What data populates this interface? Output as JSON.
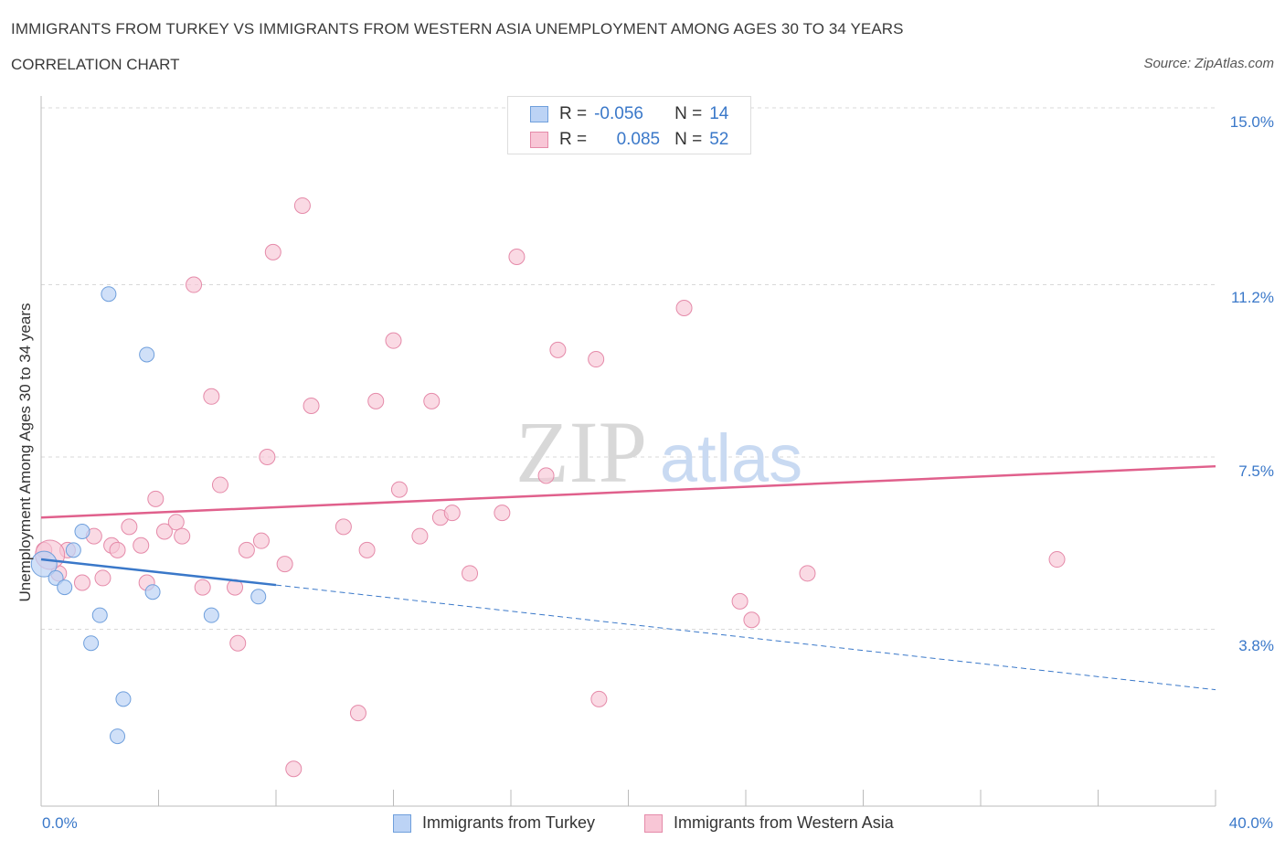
{
  "header": {
    "title": "IMMIGRANTS FROM TURKEY VS IMMIGRANTS FROM WESTERN ASIA UNEMPLOYMENT AMONG AGES 30 TO 34 YEARS",
    "subtitle": "CORRELATION CHART",
    "source": "Source: ZipAtlas.com"
  },
  "watermark": {
    "zip": "ZIP",
    "atlas": "atlas"
  },
  "stats": {
    "turkey": {
      "r_label": "R =",
      "r_value": "-0.056",
      "n_label": "N =",
      "n_value": "14"
    },
    "western_asia": {
      "r_label": "R =",
      "r_value": "0.085",
      "n_label": "N =",
      "n_value": "52"
    }
  },
  "colors": {
    "turkey_fill": "#bcd3f5",
    "turkey_stroke": "#6f9fdc",
    "turkey_line": "#3a78c9",
    "western_fill": "#f8c6d6",
    "western_stroke": "#e58aa9",
    "western_line": "#e0608c",
    "grid": "#d9d9d9",
    "axis_text": "#3a78c9"
  },
  "chart_data": {
    "type": "scatter",
    "title": "IMMIGRANTS FROM TURKEY VS IMMIGRANTS FROM WESTERN ASIA UNEMPLOYMENT AMONG AGES 30 TO 34 YEARS",
    "xlabel": "",
    "ylabel": "Unemployment Among Ages 30 to 34 years",
    "xlim": [
      0,
      40
    ],
    "ylim": [
      0,
      15
    ],
    "x_tick_labels": [
      "0.0%",
      "40.0%"
    ],
    "y_ticks": [
      3.8,
      7.5,
      11.2,
      15.0
    ],
    "y_tick_labels": [
      "3.8%",
      "7.5%",
      "11.2%",
      "15.0%"
    ],
    "legend": [
      "Immigrants from Turkey",
      "Immigrants from Western Asia"
    ],
    "series": [
      {
        "name": "Immigrants from Turkey",
        "points": [
          {
            "x": 0.1,
            "y": 5.2
          },
          {
            "x": 0.5,
            "y": 4.9
          },
          {
            "x": 0.8,
            "y": 4.7
          },
          {
            "x": 1.1,
            "y": 5.5
          },
          {
            "x": 1.4,
            "y": 5.9
          },
          {
            "x": 1.7,
            "y": 3.5
          },
          {
            "x": 2.0,
            "y": 4.1
          },
          {
            "x": 2.3,
            "y": 11.0
          },
          {
            "x": 2.8,
            "y": 2.3
          },
          {
            "x": 2.6,
            "y": 1.5
          },
          {
            "x": 3.6,
            "y": 9.7
          },
          {
            "x": 3.8,
            "y": 4.6
          },
          {
            "x": 5.8,
            "y": 4.1
          },
          {
            "x": 7.4,
            "y": 4.5
          }
        ],
        "trend": {
          "x0": 0,
          "y0": 5.3,
          "x1": 8.0,
          "y1": 4.75,
          "dash_x1": 40.0,
          "dash_y1": 2.5
        }
      },
      {
        "name": "Immigrants from Western Asia",
        "points": [
          {
            "x": 0.1,
            "y": 5.5
          },
          {
            "x": 0.6,
            "y": 5.0
          },
          {
            "x": 0.9,
            "y": 5.5
          },
          {
            "x": 1.4,
            "y": 4.8
          },
          {
            "x": 1.8,
            "y": 5.8
          },
          {
            "x": 2.1,
            "y": 4.9
          },
          {
            "x": 2.4,
            "y": 5.6
          },
          {
            "x": 2.6,
            "y": 5.5
          },
          {
            "x": 3.0,
            "y": 6.0
          },
          {
            "x": 3.4,
            "y": 5.6
          },
          {
            "x": 3.6,
            "y": 4.8
          },
          {
            "x": 3.9,
            "y": 6.6
          },
          {
            "x": 4.2,
            "y": 5.9
          },
          {
            "x": 4.6,
            "y": 6.1
          },
          {
            "x": 4.8,
            "y": 5.8
          },
          {
            "x": 5.2,
            "y": 11.2
          },
          {
            "x": 5.5,
            "y": 4.7
          },
          {
            "x": 5.8,
            "y": 8.8
          },
          {
            "x": 6.1,
            "y": 6.9
          },
          {
            "x": 6.6,
            "y": 4.7
          },
          {
            "x": 6.7,
            "y": 3.5
          },
          {
            "x": 7.0,
            "y": 5.5
          },
          {
            "x": 7.5,
            "y": 5.7
          },
          {
            "x": 7.7,
            "y": 7.5
          },
          {
            "x": 7.9,
            "y": 11.9
          },
          {
            "x": 8.3,
            "y": 5.2
          },
          {
            "x": 8.6,
            "y": 0.8
          },
          {
            "x": 8.9,
            "y": 12.9
          },
          {
            "x": 9.2,
            "y": 8.6
          },
          {
            "x": 10.3,
            "y": 6.0
          },
          {
            "x": 10.8,
            "y": 2.0
          },
          {
            "x": 11.1,
            "y": 5.5
          },
          {
            "x": 11.4,
            "y": 8.7
          },
          {
            "x": 12.0,
            "y": 10.0
          },
          {
            "x": 12.2,
            "y": 6.8
          },
          {
            "x": 12.9,
            "y": 5.8
          },
          {
            "x": 13.3,
            "y": 8.7
          },
          {
            "x": 13.6,
            "y": 6.2
          },
          {
            "x": 14.0,
            "y": 6.3
          },
          {
            "x": 14.6,
            "y": 5.0
          },
          {
            "x": 15.7,
            "y": 6.3
          },
          {
            "x": 16.2,
            "y": 11.8
          },
          {
            "x": 17.2,
            "y": 7.1
          },
          {
            "x": 17.6,
            "y": 9.8
          },
          {
            "x": 18.9,
            "y": 9.6
          },
          {
            "x": 19.0,
            "y": 2.3
          },
          {
            "x": 21.9,
            "y": 10.7
          },
          {
            "x": 23.8,
            "y": 4.4
          },
          {
            "x": 24.2,
            "y": 4.0
          },
          {
            "x": 26.1,
            "y": 5.0
          },
          {
            "x": 34.6,
            "y": 5.3
          },
          {
            "x": 0.3,
            "y": 5.4
          }
        ],
        "trend": {
          "x0": 0,
          "y0": 6.2,
          "x1": 40.0,
          "y1": 7.3
        }
      }
    ]
  }
}
